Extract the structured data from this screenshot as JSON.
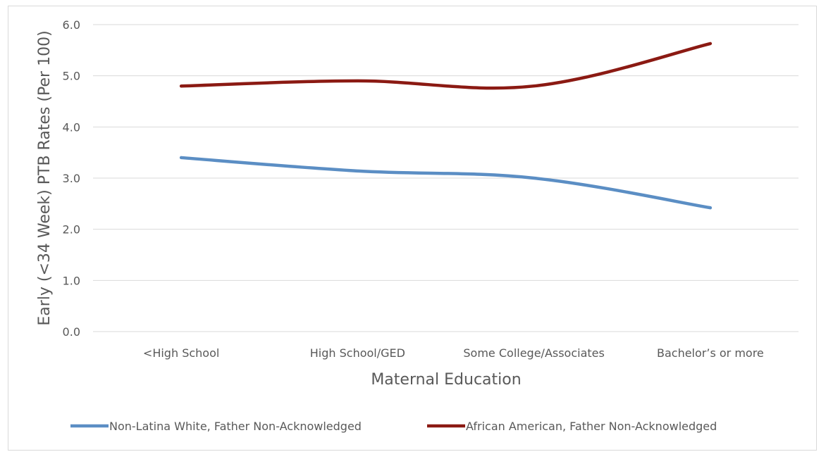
{
  "chart_data": {
    "type": "line",
    "title": "",
    "xlabel": "Maternal Education",
    "ylabel": "Early (<34 Week) PTB Rates (Per 100)",
    "categories": [
      "<High School",
      "High School/GED",
      "Some College/Associates",
      "Bachelor’s or more"
    ],
    "ylim": [
      0,
      6
    ],
    "yticks": [
      "0.0",
      "1.0",
      "2.0",
      "3.0",
      "4.0",
      "5.0",
      "6.0"
    ],
    "grid": true,
    "legend_position": "bottom",
    "series": [
      {
        "name": "Non-Latina White, Father Non-Acknowledged",
        "color": "#5b8ec4",
        "values": [
          3.4,
          3.14,
          3.0,
          2.42
        ]
      },
      {
        "name": "African American, Father Non-Acknowledged",
        "color": "#8b1a13",
        "values": [
          4.8,
          4.9,
          4.8,
          5.63
        ]
      }
    ]
  }
}
